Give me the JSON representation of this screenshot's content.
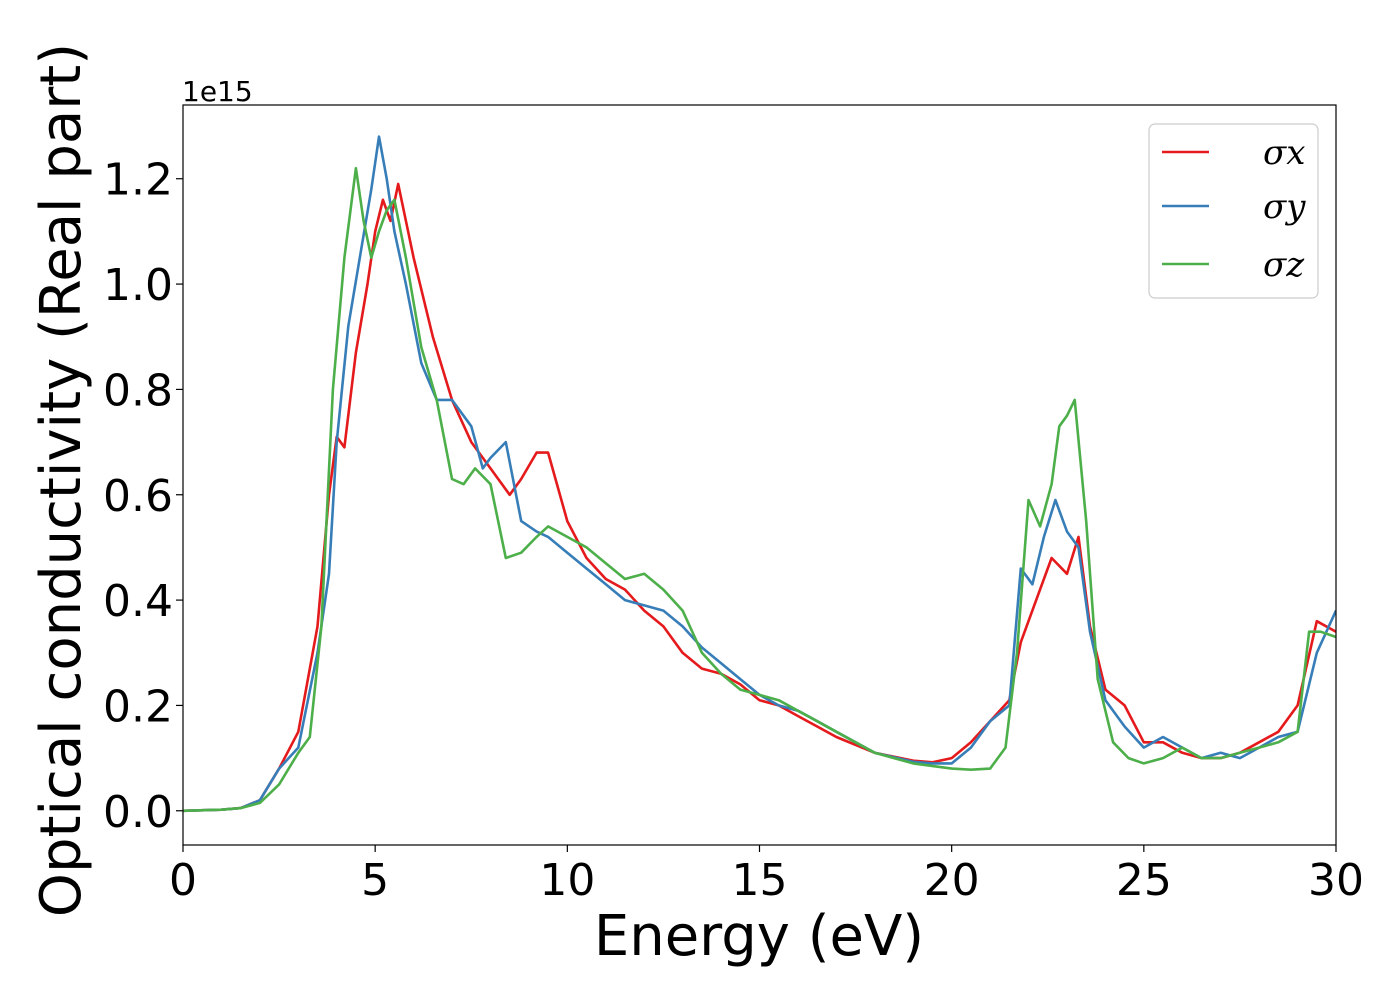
{
  "chart_data": {
    "type": "line",
    "xlabel": "Energy (eV)",
    "ylabel": "Optical conductivity (Real part)",
    "offset_text": "1e15",
    "xlim": [
      0,
      30
    ],
    "ylim": [
      -0.065,
      1.34
    ],
    "xticks": [
      0,
      5,
      10,
      15,
      20,
      25,
      30
    ],
    "xtick_labels": [
      "0",
      "5",
      "10",
      "15",
      "20",
      "25",
      "30"
    ],
    "yticks": [
      0.0,
      0.2,
      0.4,
      0.6,
      0.8,
      1.0,
      1.2
    ],
    "ytick_labels": [
      "0.0",
      "0.2",
      "0.4",
      "0.6",
      "0.8",
      "1.0",
      "1.2"
    ],
    "grid": false,
    "legend_position": "top-right",
    "series": [
      {
        "name": "σx",
        "color": "#e41a1c",
        "x": [
          0,
          1,
          1.5,
          2,
          2.5,
          3,
          3.5,
          3.8,
          4.0,
          4.2,
          4.5,
          4.8,
          5.0,
          5.2,
          5.4,
          5.6,
          6.0,
          6.5,
          7.0,
          7.5,
          8.0,
          8.5,
          8.8,
          9.2,
          9.5,
          10.0,
          10.5,
          11.0,
          11.5,
          12.0,
          12.5,
          13.0,
          13.5,
          14.0,
          14.5,
          15.0,
          15.5,
          16.0,
          16.5,
          17.0,
          18.0,
          19.0,
          19.5,
          20.0,
          20.5,
          21.0,
          21.5,
          21.8,
          22.2,
          22.6,
          23.0,
          23.3,
          23.6,
          24.0,
          24.5,
          25.0,
          25.5,
          26.0,
          26.5,
          27.0,
          27.5,
          28.0,
          28.5,
          29.0,
          29.5,
          30.0
        ],
        "y": [
          0.0,
          0.002,
          0.005,
          0.02,
          0.08,
          0.15,
          0.35,
          0.6,
          0.71,
          0.69,
          0.87,
          1.0,
          1.1,
          1.16,
          1.12,
          1.19,
          1.05,
          0.9,
          0.78,
          0.7,
          0.65,
          0.6,
          0.63,
          0.68,
          0.68,
          0.55,
          0.48,
          0.44,
          0.42,
          0.38,
          0.35,
          0.3,
          0.27,
          0.26,
          0.24,
          0.21,
          0.2,
          0.18,
          0.16,
          0.14,
          0.11,
          0.095,
          0.092,
          0.1,
          0.13,
          0.17,
          0.21,
          0.32,
          0.4,
          0.48,
          0.45,
          0.52,
          0.35,
          0.23,
          0.2,
          0.13,
          0.13,
          0.11,
          0.1,
          0.1,
          0.11,
          0.13,
          0.15,
          0.2,
          0.36,
          0.34
        ]
      },
      {
        "name": "σy",
        "color": "#377eb8",
        "x": [
          0,
          1,
          1.5,
          2,
          2.5,
          3,
          3.5,
          3.8,
          4.0,
          4.3,
          4.6,
          4.9,
          5.1,
          5.3,
          5.5,
          5.8,
          6.2,
          6.6,
          7.0,
          7.5,
          7.8,
          8.0,
          8.4,
          8.8,
          9.2,
          9.5,
          10.0,
          10.5,
          11.0,
          11.5,
          12.0,
          12.5,
          13.0,
          13.5,
          14.0,
          14.5,
          15.0,
          15.5,
          16.0,
          16.5,
          17.0,
          18.0,
          19.0,
          19.5,
          20.0,
          20.5,
          21.0,
          21.5,
          21.8,
          22.1,
          22.4,
          22.7,
          23.0,
          23.3,
          23.6,
          24.0,
          24.5,
          25.0,
          25.5,
          26.0,
          26.5,
          27.0,
          27.5,
          28.0,
          28.5,
          29.0,
          29.5,
          30.0
        ],
        "y": [
          0.0,
          0.002,
          0.005,
          0.02,
          0.08,
          0.12,
          0.3,
          0.45,
          0.7,
          0.92,
          1.05,
          1.18,
          1.28,
          1.2,
          1.1,
          1.0,
          0.85,
          0.78,
          0.78,
          0.73,
          0.65,
          0.67,
          0.7,
          0.55,
          0.53,
          0.52,
          0.49,
          0.46,
          0.43,
          0.4,
          0.39,
          0.38,
          0.35,
          0.31,
          0.28,
          0.25,
          0.22,
          0.2,
          0.19,
          0.17,
          0.15,
          0.11,
          0.093,
          0.09,
          0.09,
          0.12,
          0.17,
          0.2,
          0.46,
          0.43,
          0.52,
          0.59,
          0.53,
          0.5,
          0.34,
          0.21,
          0.16,
          0.12,
          0.14,
          0.12,
          0.1,
          0.11,
          0.1,
          0.12,
          0.14,
          0.15,
          0.3,
          0.38
        ]
      },
      {
        "name": "σz",
        "color": "#4daf4a",
        "x": [
          0,
          1,
          1.5,
          2,
          2.5,
          3,
          3.3,
          3.6,
          3.9,
          4.2,
          4.5,
          4.7,
          4.9,
          5.1,
          5.3,
          5.5,
          5.8,
          6.2,
          6.6,
          7.0,
          7.3,
          7.6,
          8.0,
          8.4,
          8.8,
          9.2,
          9.5,
          10.0,
          10.5,
          11.0,
          11.5,
          12.0,
          12.5,
          13.0,
          13.5,
          14.0,
          14.5,
          15.0,
          15.5,
          16.0,
          16.5,
          17.0,
          18.0,
          19.0,
          20.0,
          20.5,
          21.0,
          21.4,
          21.7,
          22.0,
          22.3,
          22.6,
          22.8,
          23.0,
          23.2,
          23.5,
          23.8,
          24.2,
          24.6,
          25.0,
          25.5,
          26.0,
          26.5,
          27.0,
          27.5,
          28.0,
          28.5,
          29.0,
          29.3,
          29.6,
          30.0
        ],
        "y": [
          0.0,
          0.002,
          0.005,
          0.015,
          0.05,
          0.11,
          0.14,
          0.35,
          0.8,
          1.05,
          1.22,
          1.12,
          1.05,
          1.1,
          1.14,
          1.16,
          1.05,
          0.88,
          0.78,
          0.63,
          0.62,
          0.65,
          0.62,
          0.48,
          0.49,
          0.52,
          0.54,
          0.52,
          0.5,
          0.47,
          0.44,
          0.45,
          0.42,
          0.38,
          0.3,
          0.26,
          0.23,
          0.22,
          0.21,
          0.19,
          0.17,
          0.15,
          0.11,
          0.09,
          0.08,
          0.078,
          0.08,
          0.12,
          0.3,
          0.59,
          0.54,
          0.62,
          0.73,
          0.75,
          0.78,
          0.55,
          0.25,
          0.13,
          0.1,
          0.09,
          0.1,
          0.12,
          0.1,
          0.1,
          0.11,
          0.12,
          0.13,
          0.15,
          0.34,
          0.34,
          0.33
        ]
      }
    ]
  }
}
